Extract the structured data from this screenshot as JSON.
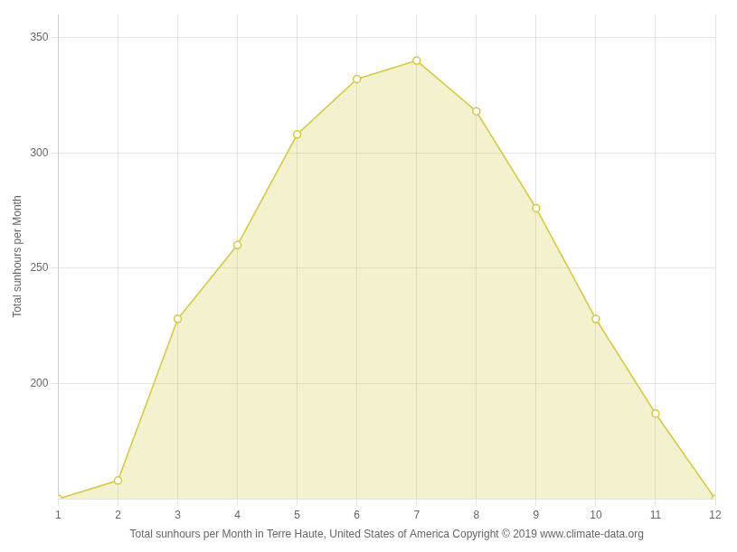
{
  "chart_data": {
    "type": "area",
    "x": [
      1,
      2,
      3,
      4,
      5,
      6,
      7,
      8,
      9,
      10,
      11,
      12
    ],
    "values": [
      150,
      158,
      228,
      260,
      308,
      332,
      340,
      318,
      276,
      228,
      187,
      150
    ],
    "color": "#D4C840",
    "marker": "circle",
    "xlabel": "Total sunhours per Month in Terre Haute, United States of America Copyright © 2019 www.climate-data.org",
    "ylabel": "Total sunhours per Month",
    "xlim": [
      1,
      12
    ],
    "ylim": [
      150,
      360
    ],
    "xticks": [
      1,
      2,
      3,
      4,
      5,
      6,
      7,
      8,
      9,
      10,
      11,
      12
    ],
    "yticks": [
      200,
      250,
      300,
      350
    ],
    "grid": true
  }
}
